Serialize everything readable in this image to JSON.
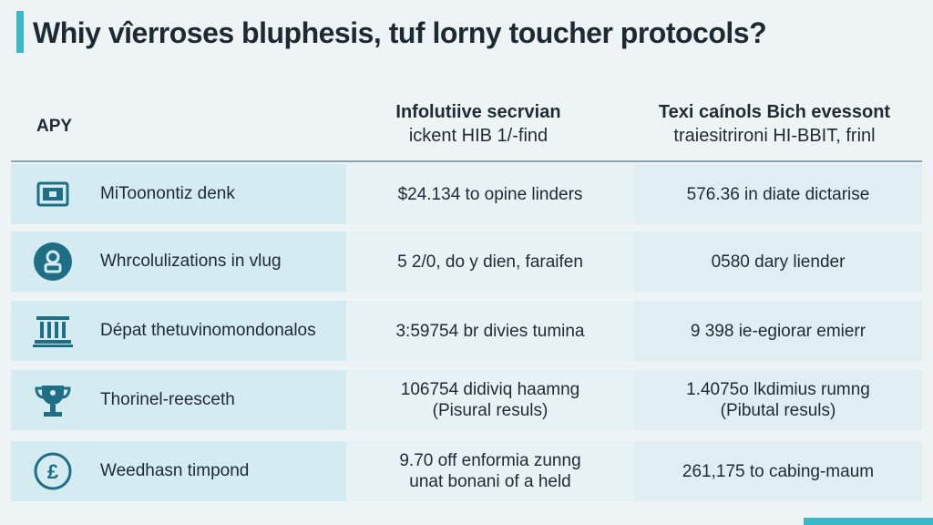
{
  "title": "Whiy vîerroses bluphesis, tuf lorny toucher protocols?",
  "header": {
    "apy": "APY",
    "col2_line1": "Infolutiive secrvian",
    "col2_line2": "ickent HIB 1/-find",
    "col3_line1": "Texi caínols Bich evessont",
    "col3_line2": "traiesitrironi HI-BBIT, frinl"
  },
  "rows": [
    {
      "icon": "wallet-icon",
      "label": "MiToonontiz denk",
      "val2_line1": "$24.134 to opine linders",
      "val2_line2": "",
      "val3_line1": "576.36  in diate dictarise",
      "val3_line2": ""
    },
    {
      "icon": "user-icon",
      "label": "Whrcolulizations in vlug",
      "val2_line1": "5 2/0,  do y dien, faraifen",
      "val2_line2": "",
      "val3_line1": "0580 dary liender",
      "val3_line2": ""
    },
    {
      "icon": "bank-icon",
      "label": "Dépat thetuvinomondonalos",
      "val2_line1": "3:59754  br divies tumina",
      "val2_line2": "",
      "val3_line1": "9 398  ie-egiorar emierr",
      "val3_line2": ""
    },
    {
      "icon": "trophy-icon",
      "label": "Thorinel-reesceth",
      "val2_line1": "106754 didiviq haamng",
      "val2_line2": "(Pisural resuls)",
      "val3_line1": "1.4075o lkdimius rumng",
      "val3_line2": "(Pibutal resuls)"
    },
    {
      "icon": "pound-coin-icon",
      "label": "Weedhasn timpond",
      "val2_line1": "9.70 off enformia zunng",
      "val2_line2": "unat bonani of a held",
      "val3_line1": "261,175 to cabing-maum",
      "val3_line2": ""
    }
  ],
  "colors": {
    "accent": "#3bb7c6",
    "icon": "#1e6f86"
  }
}
